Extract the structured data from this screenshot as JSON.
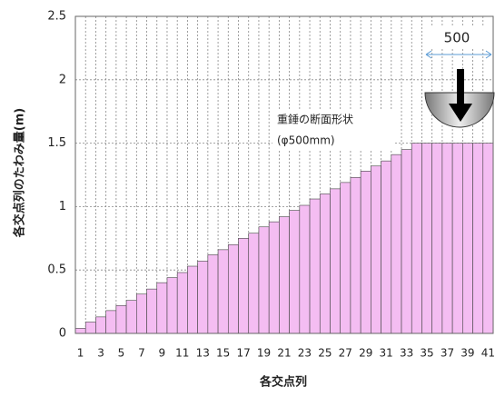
{
  "chart_data": {
    "type": "bar",
    "ylabel": "各交点列のたわみ量(m)",
    "xlabel": "各交点列",
    "annotations": [
      "重錘の断面形状",
      "(φ500mm)",
      "500"
    ],
    "categories": [
      "1",
      null,
      "3",
      null,
      "5",
      null,
      "7",
      null,
      "9",
      null,
      "11",
      null,
      "13",
      null,
      "15",
      null,
      "17",
      null,
      "19",
      null,
      "21",
      null,
      "23",
      null,
      "25",
      null,
      "27",
      null,
      "29",
      null,
      "31",
      null,
      "33",
      null,
      "35",
      null,
      "37",
      null,
      "39",
      null,
      "41"
    ],
    "values": [
      0.04,
      0.09,
      0.13,
      0.18,
      0.22,
      0.26,
      0.31,
      0.35,
      0.4,
      0.44,
      0.48,
      0.53,
      0.57,
      0.62,
      0.66,
      0.7,
      0.75,
      0.79,
      0.84,
      0.88,
      0.92,
      0.97,
      1.01,
      1.06,
      1.1,
      1.14,
      1.19,
      1.23,
      1.28,
      1.32,
      1.36,
      1.41,
      1.45,
      1.5,
      1.5,
      1.5,
      1.5,
      1.5,
      1.5,
      1.5,
      1.5
    ],
    "color": "#f4bdf2",
    "ylim": [
      0,
      2.5
    ],
    "yticks": [
      0,
      0.5,
      1,
      1.5,
      2,
      2.5
    ],
    "grid": true
  }
}
